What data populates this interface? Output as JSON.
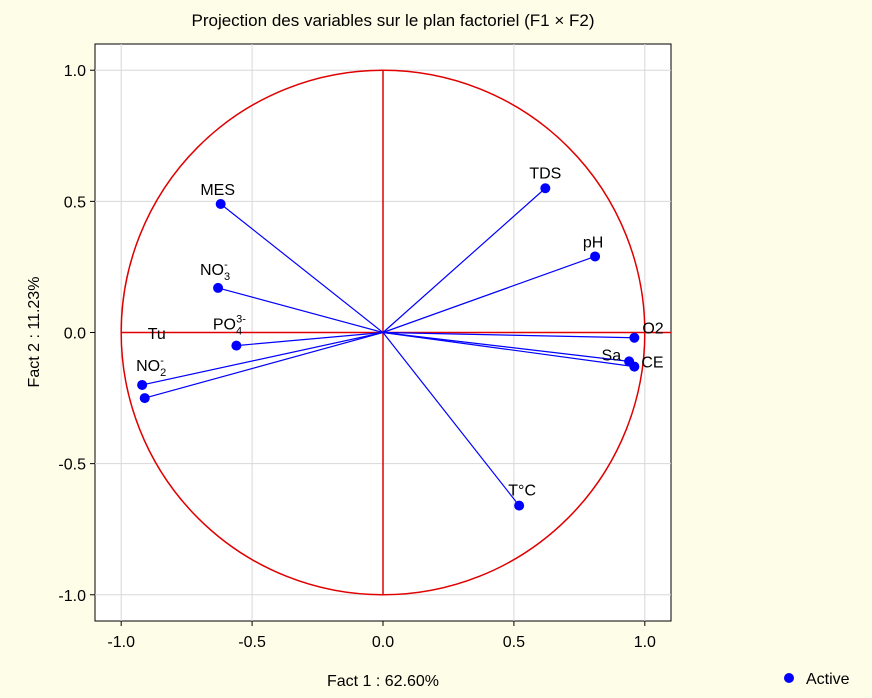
{
  "chart_data": {
    "type": "scatter",
    "title": "Projection des variables sur le plan factoriel (F1 × F2)",
    "xlabel": "Fact 1 : 62.60%",
    "ylabel": "Fact 2 : 11.23%",
    "xlim": [
      -1.1,
      1.1
    ],
    "ylim": [
      -1.1,
      1.1
    ],
    "xticks": [
      -1.0,
      -0.5,
      0.0,
      0.5,
      1.0
    ],
    "yticks": [
      1.0,
      0.5,
      0.0,
      -0.5,
      -1.0
    ],
    "xtick_labels": [
      "-1.0",
      "-0.5",
      "0.0",
      "0.5",
      "1.0"
    ],
    "ytick_labels": [
      "1.0",
      "0.5",
      "0.0",
      "-0.5",
      "-1.0"
    ],
    "grid": true,
    "unit_circle": true,
    "legend": {
      "position": "bottom-right",
      "entries": [
        {
          "label": "Active",
          "color": "#0000FF"
        }
      ]
    },
    "colors": {
      "vectors": "#0000FF",
      "circle": "#E00000",
      "background": "#FDFDE8",
      "plot_area": "#FFFFFF",
      "grid": "#D8D8D8"
    },
    "points": [
      {
        "label": "MES",
        "sup": "",
        "sub": "",
        "x": -0.62,
        "y": 0.49
      },
      {
        "label": "TDS",
        "sup": "",
        "sub": "",
        "x": 0.62,
        "y": 0.55
      },
      {
        "label": "pH",
        "sup": "",
        "sub": "",
        "x": 0.81,
        "y": 0.29
      },
      {
        "label": "NO",
        "sup": "-",
        "sub": "3",
        "x": -0.63,
        "y": 0.17
      },
      {
        "label": "PO",
        "sup": "3-",
        "sub": "4",
        "x": -0.56,
        "y": -0.05
      },
      {
        "label": "Tu",
        "sup": "",
        "sub": "",
        "x": -0.91,
        "y": -0.25
      },
      {
        "label": "NO",
        "sup": "-",
        "sub": "2",
        "x": -0.92,
        "y": -0.2
      },
      {
        "label": "O2",
        "sup": "",
        "sub": "",
        "x": 0.96,
        "y": -0.02
      },
      {
        "label": "Sa",
        "sup": "",
        "sub": "",
        "x": 0.94,
        "y": -0.11
      },
      {
        "label": "CE",
        "sup": "",
        "sub": "",
        "x": 0.96,
        "y": -0.13
      },
      {
        "label": "T°C",
        "sup": "",
        "sub": "",
        "x": 0.52,
        "y": -0.66
      }
    ]
  }
}
